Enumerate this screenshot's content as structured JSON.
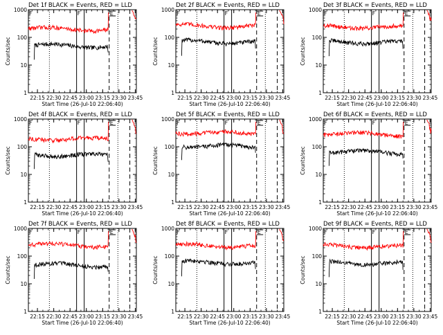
{
  "figure": {
    "panels": [
      {
        "title": "Det 1f BLACK = Events, RED = LLD",
        "xlabel": "Start Time (26-Jul-10 22:06:40)",
        "ylabel": "Counts/sec"
      },
      {
        "title": "Det 2f BLACK = Events, RED = LLD",
        "xlabel": "Start Time (26-Jul-10 22:06:40)",
        "ylabel": "Counts/sec"
      },
      {
        "title": "Det 3f BLACK = Events, RED = LLD",
        "xlabel": "Start Time (26-Jul-10 22:06:40)",
        "ylabel": "Counts/sec"
      },
      {
        "title": "Det 4f BLACK = Events, RED = LLD",
        "xlabel": "Start Time (26-Jul-10 22:06:40)",
        "ylabel": "Counts/sec"
      },
      {
        "title": "Det 5f BLACK = Events, RED = LLD",
        "xlabel": "Start Time (26-Jul-10 22:06:40)",
        "ylabel": "Counts/sec"
      },
      {
        "title": "Det 6f BLACK = Events, RED = LLD",
        "xlabel": "Start Time (26-Jul-10 22:06:40)",
        "ylabel": "Counts/sec"
      },
      {
        "title": "Det 7f BLACK = Events, RED = LLD",
        "xlabel": "Start Time (26-Jul-10 22:06:40)",
        "ylabel": "Counts/sec"
      },
      {
        "title": "Det 8f BLACK = Events, RED = LLD",
        "xlabel": "Start Time (26-Jul-10 22:06:40)",
        "ylabel": "Counts/sec"
      },
      {
        "title": "Det 9f BLACK = Events, RED = LLD",
        "xlabel": "Start Time (26-Jul-10 22:06:40)",
        "ylabel": "Counts/sec"
      }
    ]
  },
  "chart_data": [
    {
      "type": "line",
      "title": "Det 1f BLACK = Events, RED = LLD",
      "xlabel": "Start Time (26-Jul-10 22:06:40)",
      "ylabel": "Counts/sec",
      "yscale": "log",
      "ylim": [
        1,
        1000
      ],
      "xlim": [
        "22:06:40",
        "23:46:00"
      ],
      "xticks": [
        "22:15",
        "22:30",
        "22:45",
        "23:00",
        "23:15",
        "23:30",
        "23:45"
      ],
      "yticks": [
        "1",
        "10",
        "100",
        "1000"
      ],
      "grid": false,
      "colors": {
        "events": "#000000",
        "lld": "#ff0000"
      },
      "series": [
        {
          "name": "Events",
          "color": "#000000",
          "approx_level": 52,
          "start": "22:12",
          "end": "23:20"
        },
        {
          "name": "LLD",
          "color": "#ff0000",
          "approx_level": 210,
          "start": "22:06:40",
          "end": "23:20"
        }
      ],
      "markers": [
        {
          "time": "22:26",
          "style": "dotted"
        },
        {
          "time": "22:51",
          "style": "solid",
          "label": "F"
        },
        {
          "time": "22:58",
          "style": "solid"
        },
        {
          "time": "23:21",
          "style": "dashed"
        },
        {
          "time": "23:29",
          "style": "dotted"
        },
        {
          "time": "23:40",
          "style": "dashed"
        }
      ],
      "flag_labels": [
        "F",
        "F",
        "E"
      ]
    },
    {
      "type": "line",
      "title": "Det 2f BLACK = Events, RED = LLD",
      "xlabel": "Start Time (26-Jul-10 22:06:40)",
      "ylabel": "Counts/sec",
      "yscale": "log",
      "ylim": [
        1,
        1000
      ],
      "xlim": [
        "22:06:40",
        "23:46:00"
      ],
      "xticks": [
        "22:15",
        "22:30",
        "22:45",
        "23:00",
        "23:15",
        "23:30",
        "23:45"
      ],
      "yticks": [
        "1",
        "10",
        "100",
        "1000"
      ],
      "grid": false,
      "colors": {
        "events": "#000000",
        "lld": "#ff0000"
      },
      "series": [
        {
          "name": "Events",
          "color": "#000000",
          "approx_level": 72,
          "start": "22:12",
          "end": "23:20"
        },
        {
          "name": "LLD",
          "color": "#ff0000",
          "approx_level": 270,
          "start": "22:06:40",
          "end": "23:20"
        }
      ],
      "markers": [
        {
          "time": "22:26",
          "style": "dotted"
        },
        {
          "time": "22:51",
          "style": "solid",
          "label": "F"
        },
        {
          "time": "22:58",
          "style": "solid"
        },
        {
          "time": "23:21",
          "style": "dashed"
        },
        {
          "time": "23:29",
          "style": "dotted"
        },
        {
          "time": "23:40",
          "style": "dashed"
        }
      ],
      "flag_labels": [
        "F",
        "F",
        "E"
      ]
    },
    {
      "type": "line",
      "title": "Det 3f BLACK = Events, RED = LLD",
      "xlabel": "Start Time (26-Jul-10 22:06:40)",
      "ylabel": "Counts/sec",
      "yscale": "log",
      "ylim": [
        1,
        1000
      ],
      "xlim": [
        "22:06:40",
        "23:46:00"
      ],
      "xticks": [
        "22:15",
        "22:30",
        "22:45",
        "23:00",
        "23:15",
        "23:30",
        "23:45"
      ],
      "yticks": [
        "1",
        "10",
        "100",
        "1000"
      ],
      "grid": false,
      "colors": {
        "events": "#000000",
        "lld": "#ff0000"
      },
      "series": [
        {
          "name": "Events",
          "color": "#000000",
          "approx_level": 70,
          "start": "22:12",
          "end": "23:20"
        },
        {
          "name": "LLD",
          "color": "#ff0000",
          "approx_level": 250,
          "start": "22:06:40",
          "end": "23:20"
        }
      ],
      "markers": [
        {
          "time": "22:26",
          "style": "dotted"
        },
        {
          "time": "22:51",
          "style": "solid",
          "label": "F"
        },
        {
          "time": "22:58",
          "style": "solid"
        },
        {
          "time": "23:21",
          "style": "dashed"
        },
        {
          "time": "23:29",
          "style": "dotted"
        },
        {
          "time": "23:40",
          "style": "dashed"
        }
      ],
      "flag_labels": [
        "F",
        "F",
        "E"
      ]
    },
    {
      "type": "line",
      "title": "Det 4f BLACK = Events, RED = LLD",
      "xlabel": "Start Time (26-Jul-10 22:06:40)",
      "ylabel": "Counts/sec",
      "yscale": "log",
      "ylim": [
        1,
        1000
      ],
      "xlim": [
        "22:06:40",
        "23:46:00"
      ],
      "xticks": [
        "22:15",
        "22:30",
        "22:45",
        "23:00",
        "23:15",
        "23:30",
        "23:45"
      ],
      "yticks": [
        "1",
        "10",
        "100",
        "1000"
      ],
      "grid": false,
      "colors": {
        "events": "#000000",
        "lld": "#ff0000"
      },
      "series": [
        {
          "name": "Events",
          "color": "#000000",
          "approx_level": 52,
          "start": "22:12",
          "end": "23:20"
        },
        {
          "name": "LLD",
          "color": "#ff0000",
          "approx_level": 200,
          "start": "22:06:40",
          "end": "23:20"
        }
      ],
      "markers": [
        {
          "time": "22:26",
          "style": "dotted"
        },
        {
          "time": "22:51",
          "style": "solid",
          "label": "F"
        },
        {
          "time": "22:58",
          "style": "solid"
        },
        {
          "time": "23:21",
          "style": "dashed"
        },
        {
          "time": "23:29",
          "style": "dotted"
        },
        {
          "time": "23:40",
          "style": "dashed"
        }
      ],
      "flag_labels": [
        "F",
        "F",
        "E"
      ]
    },
    {
      "type": "line",
      "title": "Det 5f BLACK = Events, RED = LLD",
      "xlabel": "Start Time (26-Jul-10 22:06:40)",
      "ylabel": "Counts/sec",
      "yscale": "log",
      "ylim": [
        1,
        1000
      ],
      "xlim": [
        "22:06:40",
        "23:46:00"
      ],
      "xticks": [
        "22:15",
        "22:30",
        "22:45",
        "23:00",
        "23:15",
        "23:30",
        "23:45"
      ],
      "yticks": [
        "1",
        "10",
        "100",
        "1000"
      ],
      "grid": false,
      "colors": {
        "events": "#000000",
        "lld": "#ff0000"
      },
      "series": [
        {
          "name": "Events",
          "color": "#000000",
          "approx_level": 110,
          "start": "22:12",
          "end": "23:20"
        },
        {
          "name": "LLD",
          "color": "#ff0000",
          "approx_level": 330,
          "start": "22:06:40",
          "end": "23:20"
        }
      ],
      "markers": [
        {
          "time": "22:26",
          "style": "dotted"
        },
        {
          "time": "22:51",
          "style": "solid",
          "label": "F"
        },
        {
          "time": "22:58",
          "style": "solid"
        },
        {
          "time": "23:21",
          "style": "dashed"
        },
        {
          "time": "23:29",
          "style": "dotted"
        },
        {
          "time": "23:40",
          "style": "dashed"
        }
      ],
      "flag_labels": [
        "F",
        "F",
        "E"
      ]
    },
    {
      "type": "line",
      "title": "Det 6f BLACK = Events, RED = LLD",
      "xlabel": "Start Time (26-Jul-10 22:06:40)",
      "ylabel": "Counts/sec",
      "yscale": "log",
      "ylim": [
        1,
        1000
      ],
      "xlim": [
        "22:06:40",
        "23:46:00"
      ],
      "xticks": [
        "22:15",
        "22:30",
        "22:45",
        "23:00",
        "23:15",
        "23:30",
        "23:45"
      ],
      "yticks": [
        "1",
        "10",
        "100",
        "1000"
      ],
      "grid": false,
      "colors": {
        "events": "#000000",
        "lld": "#ff0000"
      },
      "series": [
        {
          "name": "Events",
          "color": "#000000",
          "approx_level": 68,
          "start": "22:12",
          "end": "23:20"
        },
        {
          "name": "LLD",
          "color": "#ff0000",
          "approx_level": 300,
          "start": "22:06:40",
          "end": "23:20"
        }
      ],
      "markers": [
        {
          "time": "22:26",
          "style": "dotted"
        },
        {
          "time": "22:51",
          "style": "solid",
          "label": "F"
        },
        {
          "time": "22:58",
          "style": "solid"
        },
        {
          "time": "23:21",
          "style": "dashed"
        },
        {
          "time": "23:29",
          "style": "dotted"
        },
        {
          "time": "23:40",
          "style": "dashed"
        }
      ],
      "flag_labels": [
        "F",
        "F",
        "E"
      ]
    },
    {
      "type": "line",
      "title": "Det 7f BLACK = Events, RED = LLD",
      "xlabel": "Start Time (26-Jul-10 22:06:40)",
      "ylabel": "Counts/sec",
      "yscale": "log",
      "ylim": [
        1,
        1000
      ],
      "xlim": [
        "22:06:40",
        "23:46:00"
      ],
      "xticks": [
        "22:15",
        "22:30",
        "22:45",
        "23:00",
        "23:15",
        "23:30",
        "23:45"
      ],
      "yticks": [
        "1",
        "10",
        "100",
        "1000"
      ],
      "grid": false,
      "colors": {
        "events": "#000000",
        "lld": "#ff0000"
      },
      "series": [
        {
          "name": "Events",
          "color": "#000000",
          "approx_level": 50,
          "start": "22:12",
          "end": "23:20"
        },
        {
          "name": "LLD",
          "color": "#ff0000",
          "approx_level": 260,
          "start": "22:06:40",
          "end": "23:20"
        }
      ],
      "markers": [
        {
          "time": "22:26",
          "style": "dotted"
        },
        {
          "time": "22:51",
          "style": "solid",
          "label": "F"
        },
        {
          "time": "22:58",
          "style": "solid"
        },
        {
          "time": "23:21",
          "style": "dashed"
        },
        {
          "time": "23:29",
          "style": "dotted"
        },
        {
          "time": "23:40",
          "style": "dashed"
        }
      ],
      "flag_labels": [
        "F",
        "F",
        "E"
      ]
    },
    {
      "type": "line",
      "title": "Det 8f BLACK = Events, RED = LLD",
      "xlabel": "Start Time (26-Jul-10 22:06:40)",
      "ylabel": "Counts/sec",
      "yscale": "log",
      "ylim": [
        1,
        1000
      ],
      "xlim": [
        "22:06:40",
        "23:46:00"
      ],
      "xticks": [
        "22:15",
        "22:30",
        "22:45",
        "23:00",
        "23:15",
        "23:30",
        "23:45"
      ],
      "yticks": [
        "1",
        "10",
        "100",
        "1000"
      ],
      "grid": false,
      "colors": {
        "events": "#000000",
        "lld": "#ff0000"
      },
      "series": [
        {
          "name": "Events",
          "color": "#000000",
          "approx_level": 62,
          "start": "22:12",
          "end": "23:20"
        },
        {
          "name": "LLD",
          "color": "#ff0000",
          "approx_level": 250,
          "start": "22:06:40",
          "end": "23:20"
        }
      ],
      "markers": [
        {
          "time": "22:26",
          "style": "dotted"
        },
        {
          "time": "22:51",
          "style": "solid",
          "label": "F"
        },
        {
          "time": "22:58",
          "style": "solid"
        },
        {
          "time": "23:21",
          "style": "dashed"
        },
        {
          "time": "23:29",
          "style": "dotted"
        },
        {
          "time": "23:40",
          "style": "dashed"
        }
      ],
      "flag_labels": [
        "F",
        "F",
        "E"
      ]
    },
    {
      "type": "line",
      "title": "Det 9f BLACK = Events, RED = LLD",
      "xlabel": "Start Time (26-Jul-10 22:06:40)",
      "ylabel": "Counts/sec",
      "yscale": "log",
      "ylim": [
        1,
        1000
      ],
      "xlim": [
        "22:06:40",
        "23:46:00"
      ],
      "xticks": [
        "22:15",
        "22:30",
        "22:45",
        "23:00",
        "23:15",
        "23:30",
        "23:45"
      ],
      "yticks": [
        "1",
        "10",
        "100",
        "1000"
      ],
      "grid": false,
      "colors": {
        "events": "#000000",
        "lld": "#ff0000"
      },
      "series": [
        {
          "name": "Events",
          "color": "#000000",
          "approx_level": 58,
          "start": "22:12",
          "end": "23:20"
        },
        {
          "name": "LLD",
          "color": "#ff0000",
          "approx_level": 240,
          "start": "22:06:40",
          "end": "23:20"
        }
      ],
      "markers": [
        {
          "time": "22:26",
          "style": "dotted"
        },
        {
          "time": "22:51",
          "style": "solid",
          "label": "F"
        },
        {
          "time": "22:58",
          "style": "solid"
        },
        {
          "time": "23:21",
          "style": "dashed"
        },
        {
          "time": "23:29",
          "style": "dotted"
        },
        {
          "time": "23:40",
          "style": "dashed"
        }
      ],
      "flag_labels": [
        "F",
        "F",
        "E"
      ]
    }
  ]
}
